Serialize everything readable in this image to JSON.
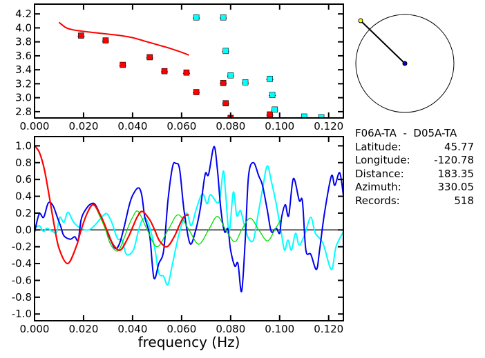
{
  "colors": {
    "red": "#ff0000",
    "cyan": "#00ffff",
    "blue": "#0000ee",
    "green": "#00dd00",
    "axis": "#000000"
  },
  "info": {
    "title": "F06A-TA  -  D05A-TA",
    "rows": [
      {
        "label": "Latitude:",
        "value": "45.77"
      },
      {
        "label": "Longitude:",
        "value": "-120.78"
      },
      {
        "label": "Distance:",
        "value": "183.35"
      },
      {
        "label": "Azimuth:",
        "value": "330.05"
      },
      {
        "label": "Records:",
        "value": "518"
      }
    ]
  },
  "chart_data": [
    {
      "type": "scatter",
      "title": "",
      "xlabel": "",
      "ylabel": "",
      "xlim": [
        0,
        0.126
      ],
      "ylim": [
        2.71,
        4.34
      ],
      "xticks": [
        "0.000",
        "0.020",
        "0.040",
        "0.060",
        "0.080",
        "0.100",
        "0.120"
      ],
      "xtick_values": [
        0,
        0.02,
        0.04,
        0.06,
        0.08,
        0.1,
        0.12
      ],
      "yticks": [
        "2.8",
        "3.0",
        "3.2",
        "3.4",
        "3.6",
        "3.8",
        "4.0",
        "4.2"
      ],
      "ytick_values": [
        2.8,
        3.0,
        3.2,
        3.4,
        3.6,
        3.8,
        4.0,
        4.2
      ],
      "series": [
        {
          "name": "red-points",
          "color": "red",
          "x": [
            0.019,
            0.029,
            0.036,
            0.047,
            0.053,
            0.062,
            0.066,
            0.077,
            0.078,
            0.08,
            0.096
          ],
          "y": [
            3.89,
            3.82,
            3.47,
            3.58,
            3.38,
            3.36,
            3.08,
            3.21,
            2.92,
            2.71,
            2.76
          ]
        },
        {
          "name": "cyan-points",
          "color": "cyan",
          "x": [
            0.066,
            0.077,
            0.078,
            0.08,
            0.086,
            0.096,
            0.097,
            0.098,
            0.11,
            0.117
          ],
          "y": [
            4.15,
            4.15,
            3.67,
            3.32,
            3.22,
            3.27,
            3.04,
            2.83,
            2.73,
            2.72
          ]
        },
        {
          "name": "red-curve",
          "color": "red",
          "type": "line",
          "x": [
            0.01,
            0.011,
            0.013,
            0.016,
            0.02,
            0.025,
            0.03,
            0.035,
            0.04,
            0.045,
            0.05,
            0.055,
            0.06,
            0.063
          ],
          "y": [
            4.08,
            4.05,
            4.0,
            3.97,
            3.95,
            3.93,
            3.91,
            3.89,
            3.86,
            3.81,
            3.76,
            3.71,
            3.65,
            3.61
          ]
        }
      ]
    },
    {
      "type": "line",
      "title": "",
      "xlabel": "frequency (Hz)",
      "ylabel": "",
      "xlim": [
        0,
        0.126
      ],
      "ylim": [
        -1.08,
        1.11
      ],
      "xticks": [
        "0.000",
        "0.020",
        "0.040",
        "0.060",
        "0.080",
        "0.100",
        "0.120"
      ],
      "xtick_values": [
        0,
        0.02,
        0.04,
        0.06,
        0.08,
        0.1,
        0.12
      ],
      "yticks": [
        "1.0",
        "0.8",
        "0.6",
        "0.4",
        "0.2",
        "0.0",
        "-0.2",
        "-0.4",
        "-0.6",
        "-0.8",
        "-1.0"
      ],
      "ytick_values": [
        1.0,
        0.8,
        0.6,
        0.4,
        0.2,
        0.0,
        -0.2,
        -0.4,
        -0.6,
        -0.8,
        -1.0
      ],
      "zero_line": true,
      "series": [
        {
          "name": "cyan",
          "color": "cyan",
          "width": 2,
          "x": [
            0,
            0.0019,
            0.0037,
            0.005,
            0.0075,
            0.009,
            0.0103,
            0.012,
            0.0136,
            0.016,
            0.0188,
            0.022,
            0.0244,
            0.028,
            0.0296,
            0.0315,
            0.0338,
            0.0357,
            0.0375,
            0.0403,
            0.0423,
            0.044,
            0.046,
            0.0488,
            0.0507,
            0.0526,
            0.0544,
            0.0563,
            0.0592,
            0.062,
            0.0639,
            0.066,
            0.0685,
            0.0704,
            0.0718,
            0.0752,
            0.077,
            0.078,
            0.0794,
            0.0811,
            0.0825,
            0.084,
            0.0855,
            0.0873,
            0.0893,
            0.091,
            0.093,
            0.0949,
            0.0966,
            0.0986,
            0.1006,
            0.102,
            0.1034,
            0.1048,
            0.1065,
            0.108,
            0.1104,
            0.1127,
            0.1146,
            0.1177,
            0.1211,
            0.123,
            0.126
          ],
          "y": [
            0.01,
            0.05,
            -0.02,
            0.02,
            -0.02,
            -0.03,
            0.15,
            0.09,
            0.21,
            0.09,
            0.02,
            0.0,
            0.05,
            0.17,
            0.19,
            0.09,
            -0.1,
            -0.12,
            -0.29,
            -0.24,
            -0.02,
            0.12,
            0.11,
            -0.18,
            -0.51,
            -0.55,
            -0.65,
            -0.4,
            -0.02,
            0.2,
            0.05,
            0.25,
            0.43,
            0.31,
            0.42,
            0.33,
            0.7,
            0.42,
            -0.02,
            0.45,
            0.17,
            0.23,
            0.07,
            -0.1,
            -0.12,
            0.15,
            0.48,
            0.76,
            0.58,
            0.31,
            -0.02,
            -0.24,
            -0.12,
            -0.24,
            -0.04,
            -0.18,
            -0.04,
            0.15,
            -0.04,
            -0.16,
            -0.47,
            -0.2,
            -0.02
          ]
        },
        {
          "name": "blue",
          "color": "blue",
          "width": 2,
          "x": [
            0,
            0.0019,
            0.0037,
            0.0056,
            0.0075,
            0.0093,
            0.0107,
            0.012,
            0.0146,
            0.0164,
            0.0178,
            0.019,
            0.0206,
            0.023,
            0.025,
            0.028,
            0.031,
            0.033,
            0.0347,
            0.0366,
            0.0386,
            0.04,
            0.0423,
            0.0437,
            0.045,
            0.047,
            0.0487,
            0.0507,
            0.0527,
            0.0544,
            0.0563,
            0.0577,
            0.0592,
            0.061,
            0.0634,
            0.0656,
            0.0676,
            0.0696,
            0.071,
            0.0732,
            0.0746,
            0.076,
            0.0775,
            0.0789,
            0.08,
            0.0817,
            0.083,
            0.0845,
            0.086,
            0.0873,
            0.0893,
            0.0915,
            0.093,
            0.095,
            0.0966,
            0.0986,
            0.1,
            0.1008,
            0.1023,
            0.1037,
            0.1056,
            0.108,
            0.1093,
            0.1107,
            0.1127,
            0.115,
            0.1163,
            0.1183,
            0.1211,
            0.1225,
            0.1245,
            0.126
          ],
          "y": [
            -0.03,
            0.19,
            0.15,
            0.32,
            0.29,
            0.15,
            0.04,
            -0.07,
            -0.11,
            -0.08,
            -0.12,
            0.12,
            0.23,
            0.31,
            0.29,
            0.09,
            -0.12,
            -0.22,
            -0.16,
            0.04,
            0.29,
            0.41,
            0.5,
            0.42,
            0.15,
            -0.07,
            -0.57,
            -0.4,
            -0.24,
            0.34,
            0.75,
            0.79,
            0.72,
            0.23,
            -0.16,
            -0.02,
            0.25,
            0.66,
            0.66,
            0.99,
            0.72,
            0.25,
            -0.02,
            0.01,
            -0.24,
            -0.43,
            -0.4,
            -0.73,
            -0.1,
            0.64,
            0.8,
            0.64,
            0.53,
            0.23,
            -0.02,
            0.02,
            -0.04,
            0.15,
            0.3,
            0.17,
            0.61,
            0.35,
            0.34,
            -0.24,
            -0.29,
            -0.47,
            -0.24,
            0.2,
            0.64,
            0.53,
            0.68,
            0.41
          ]
        },
        {
          "name": "green",
          "color": "green",
          "width": 1.3,
          "x": [
            0.006,
            0.008,
            0.01,
            0.0135,
            0.017,
            0.019,
            0.0215,
            0.024,
            0.0265,
            0.029,
            0.031,
            0.034,
            0.0365,
            0.038,
            0.04,
            0.0423,
            0.046,
            0.05,
            0.0545,
            0.0586,
            0.063,
            0.067,
            0.071,
            0.0746,
            0.078,
            0.0817,
            0.0845,
            0.088,
            0.0915,
            0.095,
            0.098,
            0.1006
          ],
          "y": [
            0.4,
            0.06,
            -0.22,
            -0.4,
            -0.2,
            0.0,
            0.2,
            0.3,
            0.17,
            0.0,
            -0.17,
            -0.25,
            -0.1,
            0.02,
            0.15,
            0.22,
            0.0,
            -0.2,
            0.0,
            0.18,
            0.0,
            -0.17,
            0.0,
            0.16,
            0.0,
            -0.14,
            0.0,
            0.14,
            0.0,
            -0.13,
            0.0,
            0.13
          ]
        },
        {
          "name": "red",
          "color": "red",
          "width": 2.2,
          "x": [
            0,
            0.002,
            0.004,
            0.006,
            0.008,
            0.01,
            0.0135,
            0.017,
            0.019,
            0.0215,
            0.024,
            0.027,
            0.0295,
            0.032,
            0.035,
            0.038,
            0.04,
            0.042,
            0.044,
            0.047,
            0.049,
            0.051,
            0.054,
            0.057,
            0.059,
            0.061,
            0.063
          ],
          "y": [
            1.0,
            0.92,
            0.72,
            0.4,
            0.06,
            -0.22,
            -0.4,
            -0.2,
            0.0,
            0.2,
            0.3,
            0.17,
            0.0,
            -0.17,
            -0.24,
            -0.1,
            0.03,
            0.16,
            0.22,
            0.12,
            0.0,
            -0.13,
            -0.2,
            -0.08,
            0.05,
            0.16,
            0.18
          ]
        }
      ]
    }
  ]
}
